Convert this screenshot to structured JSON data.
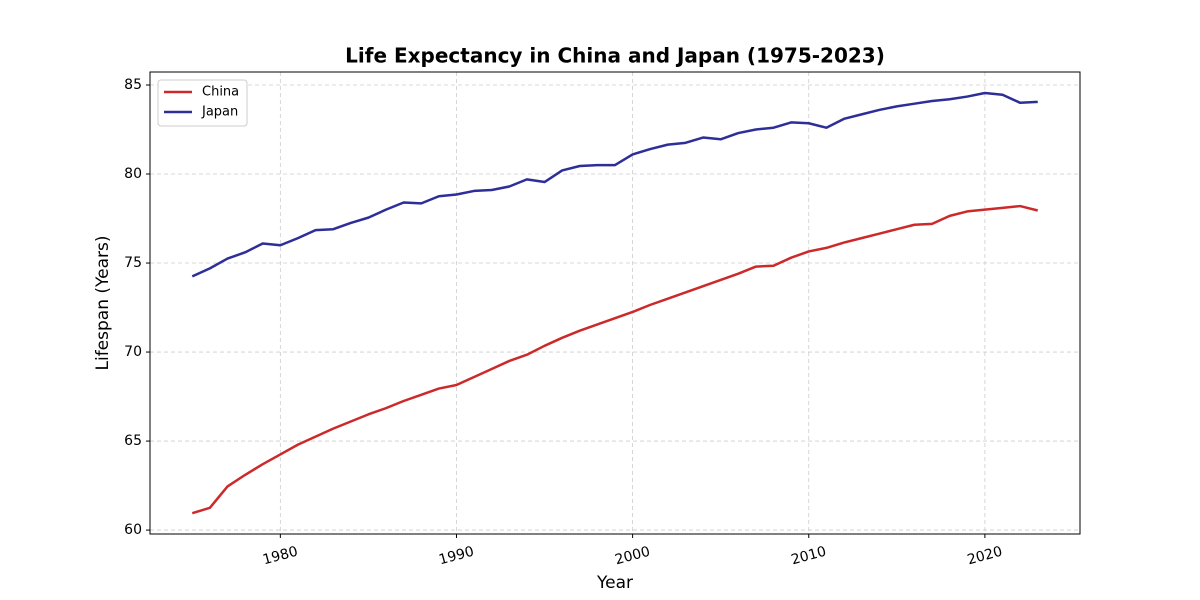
{
  "chart_data": {
    "type": "line",
    "title": "Life Expectancy in China and Japan (1975-2023)",
    "x_label": "Year",
    "y_label": "Lifespan (Years)",
    "x": [
      1975,
      1976,
      1977,
      1978,
      1979,
      1980,
      1981,
      1982,
      1983,
      1984,
      1985,
      1986,
      1987,
      1988,
      1989,
      1990,
      1991,
      1992,
      1993,
      1994,
      1995,
      1996,
      1997,
      1998,
      1999,
      2000,
      2001,
      2002,
      2003,
      2004,
      2005,
      2006,
      2007,
      2008,
      2009,
      2010,
      2011,
      2012,
      2013,
      2014,
      2015,
      2016,
      2017,
      2018,
      2019,
      2020,
      2021,
      2022,
      2023
    ],
    "series": [
      {
        "name": "China",
        "color": "#cc2a2a",
        "values": [
          60.95,
          61.25,
          62.45,
          63.1,
          63.7,
          64.25,
          64.8,
          65.25,
          65.7,
          66.1,
          66.5,
          66.85,
          67.25,
          67.6,
          67.95,
          68.15,
          68.6,
          69.05,
          69.5,
          69.85,
          70.35,
          70.8,
          71.2,
          71.55,
          71.9,
          72.25,
          72.65,
          73.0,
          73.35,
          73.7,
          74.05,
          74.4,
          74.8,
          74.85,
          75.3,
          75.65,
          75.85,
          76.15,
          76.4,
          76.65,
          76.9,
          77.15,
          77.2,
          77.65,
          77.9,
          78.0,
          78.1,
          78.2,
          77.95
        ]
      },
      {
        "name": "Japan",
        "color": "#2e2e99",
        "values": [
          74.25,
          74.7,
          75.25,
          75.6,
          76.1,
          76.0,
          76.4,
          76.85,
          76.9,
          77.25,
          77.55,
          78.0,
          78.4,
          78.35,
          78.75,
          78.85,
          79.05,
          79.1,
          79.3,
          79.7,
          79.55,
          80.2,
          80.45,
          80.5,
          80.5,
          81.1,
          81.4,
          81.65,
          81.75,
          82.05,
          81.95,
          82.3,
          82.5,
          82.6,
          82.9,
          82.85,
          82.6,
          83.1,
          83.35,
          83.6,
          83.8,
          83.95,
          84.1,
          84.2,
          84.35,
          84.55,
          84.45,
          84.0,
          84.05
        ]
      }
    ],
    "xlim": [
      1972.6,
      2025.4
    ],
    "ylim": [
      59.78,
      85.73
    ],
    "xticks": [
      1980,
      1990,
      2000,
      2010,
      2020
    ],
    "yticks": [
      60,
      65,
      70,
      75,
      80,
      85
    ],
    "grid": true,
    "legend": "upper-left"
  }
}
